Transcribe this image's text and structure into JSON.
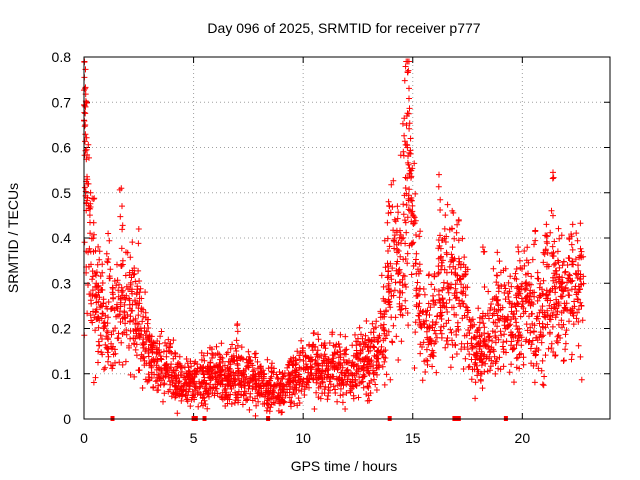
{
  "chart_data": {
    "type": "scatter",
    "title": "Day 096 of 2025, SRMTID for receiver p777",
    "xlabel": "GPS time / hours",
    "ylabel": "SRMTID / TECUs",
    "xlim": [
      0,
      24
    ],
    "ylim": [
      0,
      0.8
    ],
    "xticks": [
      0,
      5,
      10,
      15,
      20
    ],
    "yticks": [
      0,
      0.1,
      0.2,
      0.3,
      0.4,
      0.5,
      0.6,
      0.7,
      0.8
    ],
    "xtick_labels": [
      "0",
      "5",
      "10",
      "15",
      "20"
    ],
    "ytick_labels": [
      "0",
      "0.1",
      "0.2",
      "0.3",
      "0.4",
      "0.5",
      "0.6",
      "0.7",
      "0.8"
    ],
    "grid": true,
    "marker": "plus",
    "color": "#ff0000",
    "trend": [
      [
        0.0,
        0.62
      ],
      [
        0.1,
        0.5
      ],
      [
        0.25,
        0.38
      ],
      [
        0.5,
        0.28
      ],
      [
        0.8,
        0.22
      ],
      [
        1.0,
        0.2
      ],
      [
        1.3,
        0.19
      ],
      [
        1.6,
        0.24
      ],
      [
        2.0,
        0.26
      ],
      [
        2.4,
        0.22
      ],
      [
        2.8,
        0.16
      ],
      [
        3.2,
        0.13
      ],
      [
        3.6,
        0.12
      ],
      [
        4.0,
        0.1
      ],
      [
        4.5,
        0.09
      ],
      [
        5.0,
        0.08
      ],
      [
        5.5,
        0.08
      ],
      [
        6.0,
        0.09
      ],
      [
        6.5,
        0.09
      ],
      [
        7.0,
        0.09
      ],
      [
        7.5,
        0.09
      ],
      [
        8.0,
        0.08
      ],
      [
        8.5,
        0.07
      ],
      [
        9.0,
        0.06
      ],
      [
        9.5,
        0.09
      ],
      [
        10.0,
        0.11
      ],
      [
        10.5,
        0.11
      ],
      [
        11.0,
        0.11
      ],
      [
        11.5,
        0.11
      ],
      [
        12.0,
        0.11
      ],
      [
        12.5,
        0.11
      ],
      [
        13.0,
        0.12
      ],
      [
        13.5,
        0.16
      ],
      [
        13.8,
        0.25
      ],
      [
        14.1,
        0.33
      ],
      [
        14.4,
        0.33
      ],
      [
        14.7,
        0.45
      ],
      [
        14.85,
        0.55
      ],
      [
        15.0,
        0.4
      ],
      [
        15.3,
        0.25
      ],
      [
        15.6,
        0.2
      ],
      [
        16.0,
        0.22
      ],
      [
        16.3,
        0.3
      ],
      [
        16.6,
        0.28
      ],
      [
        17.0,
        0.26
      ],
      [
        17.3,
        0.25
      ],
      [
        17.6,
        0.18
      ],
      [
        18.0,
        0.14
      ],
      [
        18.4,
        0.16
      ],
      [
        18.8,
        0.22
      ],
      [
        19.2,
        0.22
      ],
      [
        19.6,
        0.21
      ],
      [
        20.0,
        0.22
      ],
      [
        20.5,
        0.24
      ],
      [
        21.0,
        0.25
      ],
      [
        21.5,
        0.27
      ],
      [
        22.0,
        0.26
      ],
      [
        22.5,
        0.27
      ],
      [
        22.8,
        0.26
      ]
    ],
    "peaks": [
      [
        0.02,
        0.755
      ],
      [
        0.05,
        0.73
      ],
      [
        0.1,
        0.7
      ],
      [
        0.15,
        0.53
      ],
      [
        0.3,
        0.5
      ],
      [
        1.1,
        0.41
      ],
      [
        1.7,
        0.51
      ],
      [
        2.5,
        0.42
      ],
      [
        7.0,
        0.21
      ],
      [
        10.5,
        0.19
      ],
      [
        13.9,
        0.48
      ],
      [
        14.3,
        0.47
      ],
      [
        14.7,
        0.79
      ],
      [
        14.8,
        0.77
      ],
      [
        14.9,
        0.62
      ],
      [
        16.2,
        0.54
      ],
      [
        16.8,
        0.46
      ],
      [
        17.1,
        0.44
      ],
      [
        18.2,
        0.38
      ],
      [
        19.8,
        0.38
      ],
      [
        21.1,
        0.43
      ],
      [
        21.4,
        0.545
      ],
      [
        22.3,
        0.43
      ],
      [
        22.7,
        0.37
      ]
    ],
    "gaps": [
      1.3,
      5.0,
      5.1,
      5.5,
      8.4,
      13.95,
      16.9,
      17.0,
      17.1,
      19.25
    ]
  }
}
